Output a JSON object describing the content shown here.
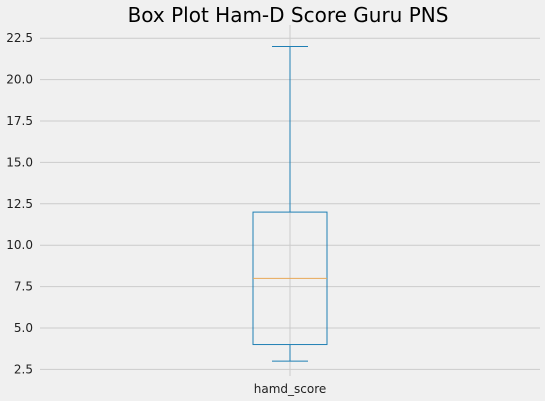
{
  "chart_data": {
    "type": "box",
    "title": "Box Plot Ham-D Score Guru PNS",
    "categories": [
      "hamd_score"
    ],
    "series": [
      {
        "name": "hamd_score",
        "whisker_low": 3,
        "q1": 4,
        "median": 8,
        "q3": 12,
        "whisker_high": 22
      }
    ],
    "y_ticks": [
      2.5,
      5.0,
      7.5,
      10.0,
      12.5,
      15.0,
      17.5,
      20.0,
      22.5
    ],
    "y_tick_labels": [
      "2.5",
      "5.0",
      "7.5",
      "10.0",
      "12.5",
      "15.0",
      "17.5",
      "20.0",
      "22.5"
    ],
    "ylim": [
      2.1,
      23.3
    ],
    "grid": true,
    "colors": {
      "background": "#f0f0f0",
      "grid": "#cbcbcb",
      "box": "#1f7fb4",
      "median": "#e8a857"
    }
  }
}
